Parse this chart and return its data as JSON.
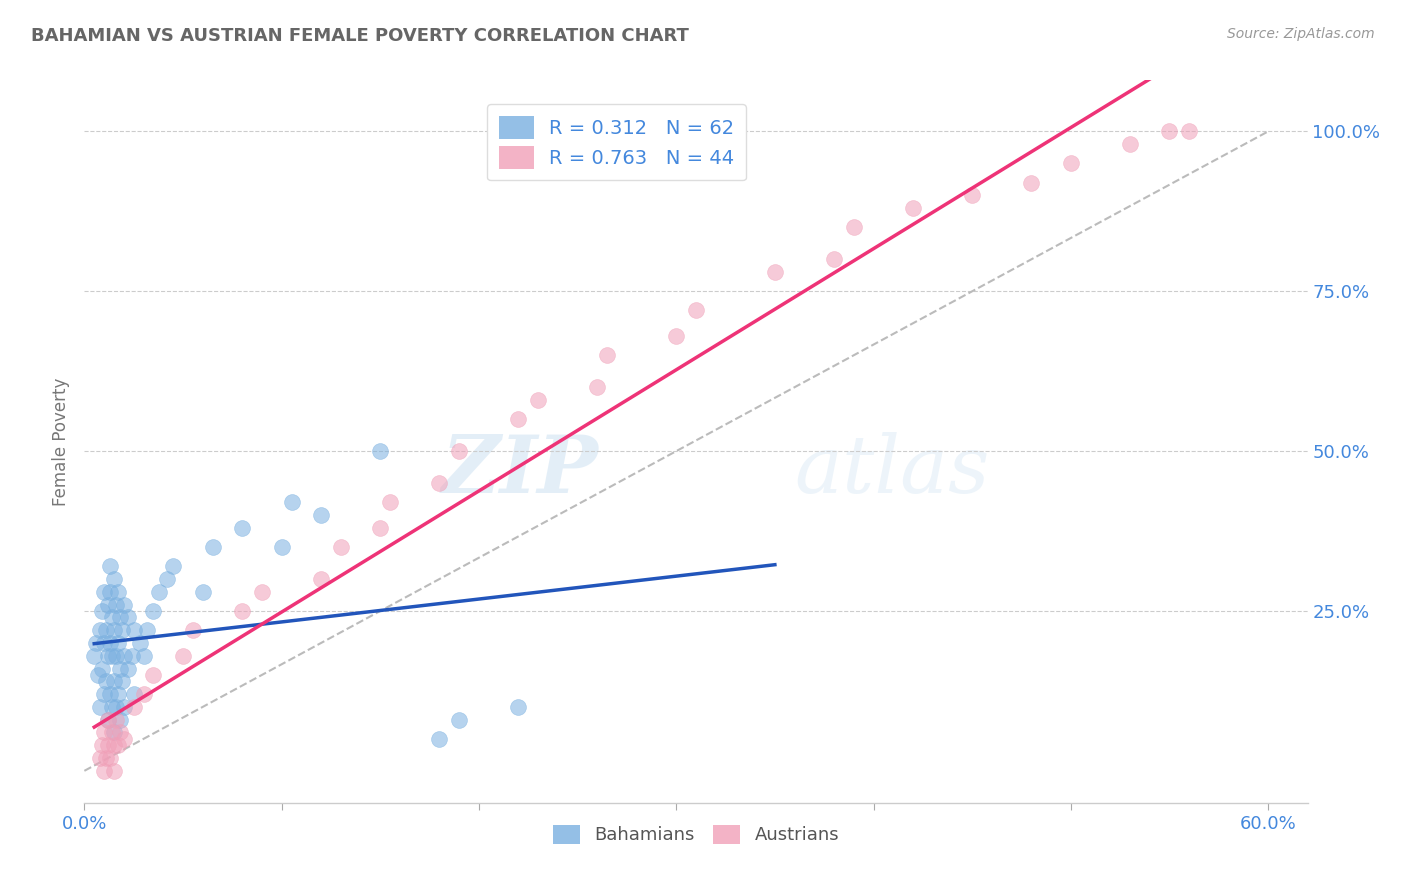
{
  "title": "BAHAMIAN VS AUSTRIAN FEMALE POVERTY CORRELATION CHART",
  "source": "Source: ZipAtlas.com",
  "ylabel": "Female Poverty",
  "xlim": [
    0.0,
    0.62
  ],
  "ylim": [
    -0.05,
    1.08
  ],
  "x_ticks": [
    0.0,
    0.1,
    0.2,
    0.3,
    0.4,
    0.5,
    0.6
  ],
  "x_tick_labels": [
    "0.0%",
    "",
    "",
    "",
    "",
    "",
    "60.0%"
  ],
  "y_ticks_right": [
    0.0,
    0.25,
    0.5,
    0.75,
    1.0
  ],
  "y_tick_labels_right": [
    "",
    "25.0%",
    "50.0%",
    "75.0%",
    "100.0%"
  ],
  "grid_color": "#cccccc",
  "background_color": "#ffffff",
  "bahamian_color": "#7ab0e0",
  "austrian_color": "#f0a0b8",
  "bahamian_R": 0.312,
  "bahamian_N": 62,
  "austrian_R": 0.763,
  "austrian_N": 44,
  "legend_label_1": "Bahamians",
  "legend_label_2": "Austrians",
  "watermark_zip": "ZIP",
  "watermark_atlas": "atlas",
  "title_color": "#666666",
  "axis_label_color": "#4488dd",
  "reg_blue": "#2255bb",
  "reg_pink": "#ee3377",
  "diag_color": "#bbbbbb",
  "bahamian_scatter_x": [
    0.005,
    0.006,
    0.007,
    0.008,
    0.008,
    0.009,
    0.009,
    0.01,
    0.01,
    0.01,
    0.011,
    0.011,
    0.012,
    0.012,
    0.012,
    0.013,
    0.013,
    0.013,
    0.013,
    0.014,
    0.014,
    0.014,
    0.015,
    0.015,
    0.015,
    0.015,
    0.016,
    0.016,
    0.016,
    0.017,
    0.017,
    0.017,
    0.018,
    0.018,
    0.018,
    0.019,
    0.019,
    0.02,
    0.02,
    0.02,
    0.022,
    0.022,
    0.024,
    0.025,
    0.025,
    0.028,
    0.03,
    0.032,
    0.035,
    0.038,
    0.042,
    0.045,
    0.06,
    0.065,
    0.08,
    0.1,
    0.105,
    0.12,
    0.15,
    0.18,
    0.19,
    0.22
  ],
  "bahamian_scatter_y": [
    0.18,
    0.2,
    0.15,
    0.22,
    0.1,
    0.16,
    0.25,
    0.12,
    0.2,
    0.28,
    0.14,
    0.22,
    0.08,
    0.18,
    0.26,
    0.12,
    0.2,
    0.28,
    0.32,
    0.1,
    0.18,
    0.24,
    0.06,
    0.14,
    0.22,
    0.3,
    0.1,
    0.18,
    0.26,
    0.12,
    0.2,
    0.28,
    0.08,
    0.16,
    0.24,
    0.14,
    0.22,
    0.1,
    0.18,
    0.26,
    0.16,
    0.24,
    0.18,
    0.12,
    0.22,
    0.2,
    0.18,
    0.22,
    0.25,
    0.28,
    0.3,
    0.32,
    0.28,
    0.35,
    0.38,
    0.35,
    0.42,
    0.4,
    0.5,
    0.05,
    0.08,
    0.1
  ],
  "austrian_scatter_x": [
    0.008,
    0.009,
    0.01,
    0.01,
    0.011,
    0.012,
    0.012,
    0.013,
    0.014,
    0.015,
    0.015,
    0.016,
    0.017,
    0.018,
    0.02,
    0.025,
    0.03,
    0.035,
    0.05,
    0.055,
    0.08,
    0.09,
    0.12,
    0.13,
    0.15,
    0.155,
    0.18,
    0.19,
    0.22,
    0.23,
    0.26,
    0.265,
    0.3,
    0.31,
    0.35,
    0.38,
    0.39,
    0.42,
    0.45,
    0.48,
    0.5,
    0.53,
    0.55,
    0.56
  ],
  "austrian_scatter_y": [
    0.02,
    0.04,
    0.0,
    0.06,
    0.02,
    0.04,
    0.08,
    0.02,
    0.06,
    0.0,
    0.04,
    0.08,
    0.04,
    0.06,
    0.05,
    0.1,
    0.12,
    0.15,
    0.18,
    0.22,
    0.25,
    0.28,
    0.3,
    0.35,
    0.38,
    0.42,
    0.45,
    0.5,
    0.55,
    0.58,
    0.6,
    0.65,
    0.68,
    0.72,
    0.78,
    0.8,
    0.85,
    0.88,
    0.9,
    0.92,
    0.95,
    0.98,
    1.0,
    1.0
  ]
}
